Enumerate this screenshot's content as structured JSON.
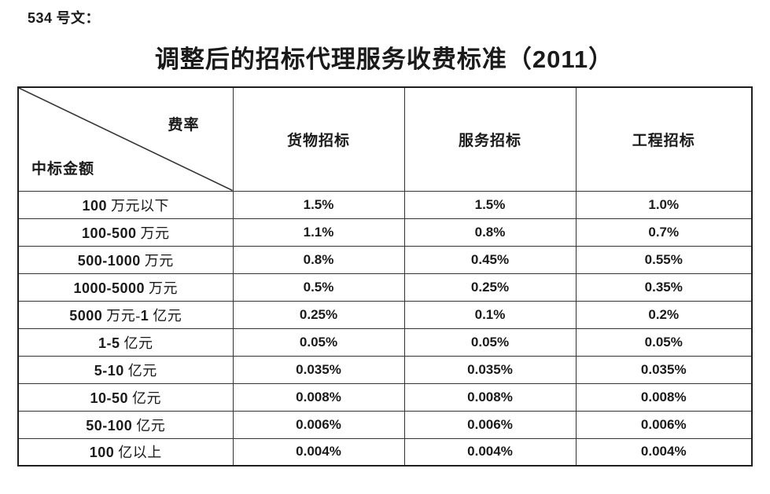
{
  "document": {
    "doc_number_label": "534 号文：",
    "title": "调整后的招标代理服务收费标准（2011）"
  },
  "table": {
    "corner": {
      "rate_label": "费率",
      "amount_label": "中标金额"
    },
    "columns": [
      "货物招标",
      "服务招标",
      "工程招标"
    ],
    "rows": [
      {
        "amount": "100 万元以下",
        "values": [
          "1.5%",
          "1.5%",
          "1.0%"
        ]
      },
      {
        "amount": "100-500 万元",
        "values": [
          "1.1%",
          "0.8%",
          "0.7%"
        ]
      },
      {
        "amount": "500-1000 万元",
        "values": [
          "0.8%",
          "0.45%",
          "0.55%"
        ]
      },
      {
        "amount": "1000-5000 万元",
        "values": [
          "0.5%",
          "0.25%",
          "0.35%"
        ]
      },
      {
        "amount": "5000 万元-1 亿元",
        "values": [
          "0.25%",
          "0.1%",
          "0.2%"
        ]
      },
      {
        "amount": "1-5 亿元",
        "values": [
          "0.05%",
          "0.05%",
          "0.05%"
        ]
      },
      {
        "amount": "5-10 亿元",
        "values": [
          "0.035%",
          "0.035%",
          "0.035%"
        ]
      },
      {
        "amount": "10-50 亿元",
        "values": [
          "0.008%",
          "0.008%",
          "0.008%"
        ]
      },
      {
        "amount": "50-100 亿元",
        "values": [
          "0.006%",
          "0.006%",
          "0.006%"
        ]
      },
      {
        "amount": "100 亿以上",
        "values": [
          "0.004%",
          "0.004%",
          "0.004%"
        ]
      }
    ],
    "line_color": "#333333"
  }
}
